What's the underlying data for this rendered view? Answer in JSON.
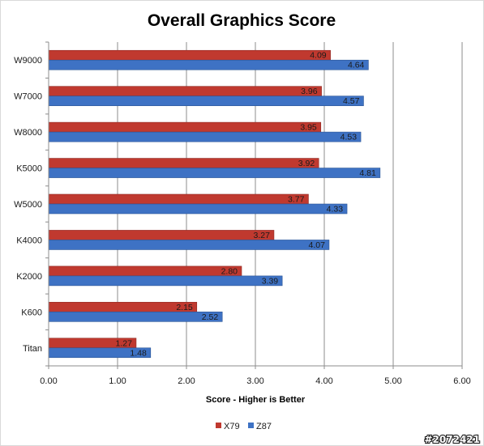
{
  "chart_data": {
    "type": "bar",
    "orientation": "horizontal",
    "title": "Overall Graphics Score",
    "xlabel": "Score - Higher is Better",
    "ylabel": "",
    "categories": [
      "W9000",
      "W7000",
      "W8000",
      "K5000",
      "W5000",
      "K4000",
      "K2000",
      "K600",
      "Titan"
    ],
    "series": [
      {
        "name": "X79",
        "color": "#c0392f",
        "values": [
          4.09,
          3.96,
          3.95,
          3.92,
          3.77,
          3.27,
          2.8,
          2.15,
          1.27
        ],
        "labels": [
          "4.09",
          "3.96",
          "3.95",
          "3.92",
          "3.77",
          "3.27",
          "2.80",
          "2.15",
          "1.27"
        ]
      },
      {
        "name": "Z87",
        "color": "#3e72c4",
        "values": [
          4.64,
          4.57,
          4.53,
          4.81,
          4.33,
          4.07,
          3.39,
          2.52,
          1.48
        ],
        "labels": [
          "4.64",
          "4.57",
          "4.53",
          "4.81",
          "4.33",
          "4.07",
          "3.39",
          "2.52",
          "1.48"
        ]
      }
    ],
    "xlim": [
      0,
      6
    ],
    "ticks": [
      "0.00",
      "1.00",
      "2.00",
      "3.00",
      "4.00",
      "5.00",
      "6.00"
    ],
    "grid": "vertical",
    "legend": "bottom"
  },
  "watermark": "#2072421"
}
